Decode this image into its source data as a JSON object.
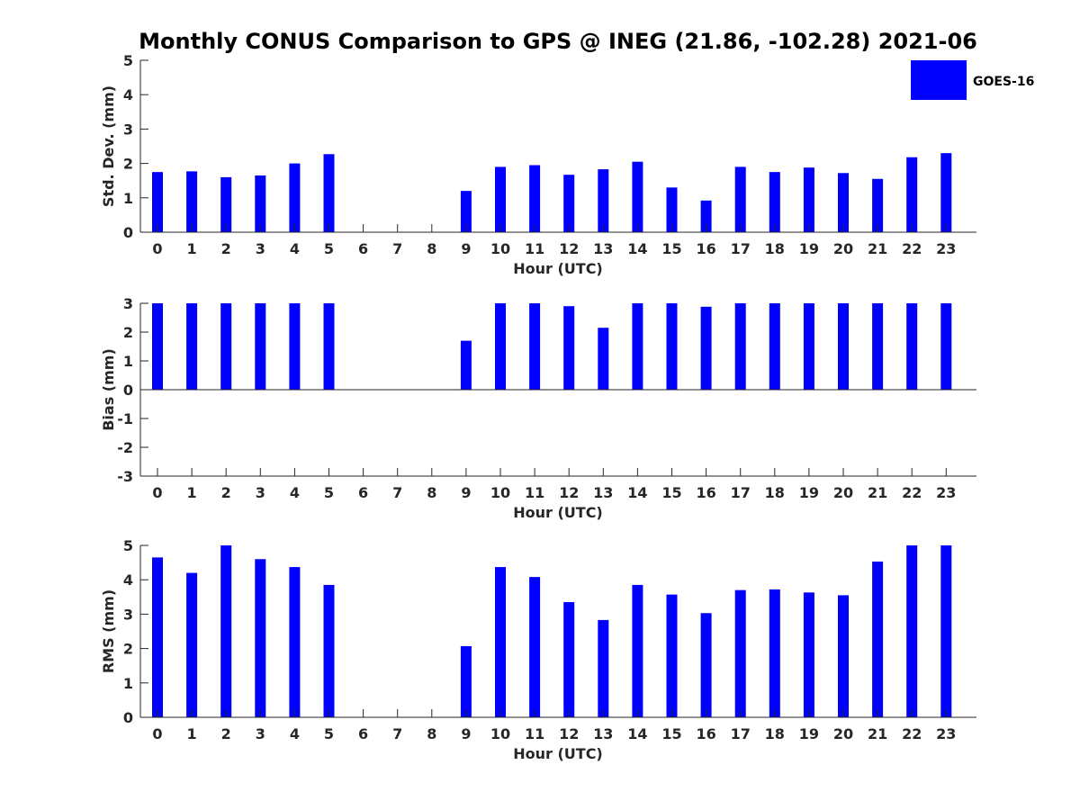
{
  "title": "Monthly CONUS Comparison to GPS @ INEG (21.86, -102.28) 2021-06",
  "legend": {
    "label": "GOES-16",
    "color": "#0000ff",
    "placement": "top-right"
  },
  "chart_data": [
    {
      "type": "bar",
      "xlabel": "Hour (UTC)",
      "ylabel": "Std. Dev. (mm)",
      "ylim": [
        0,
        5
      ],
      "yticks": [
        0,
        1,
        2,
        3,
        4,
        5
      ],
      "categories": [
        "0",
        "1",
        "2",
        "3",
        "4",
        "5",
        "6",
        "7",
        "8",
        "9",
        "10",
        "11",
        "12",
        "13",
        "14",
        "15",
        "16",
        "17",
        "18",
        "19",
        "20",
        "21",
        "22",
        "23"
      ],
      "series": [
        {
          "name": "GOES-16",
          "values": [
            1.75,
            1.77,
            1.6,
            1.65,
            2.0,
            2.27,
            null,
            null,
            null,
            1.2,
            1.9,
            1.95,
            1.67,
            1.83,
            2.05,
            1.3,
            0.92,
            1.9,
            1.75,
            1.88,
            1.72,
            1.55,
            2.18,
            2.3
          ]
        }
      ]
    },
    {
      "type": "bar",
      "xlabel": "Hour (UTC)",
      "ylabel": "Bias (mm)",
      "ylim": [
        -3,
        3
      ],
      "yticks": [
        -3,
        -2,
        -1,
        0,
        1,
        2,
        3
      ],
      "categories": [
        "0",
        "1",
        "2",
        "3",
        "4",
        "5",
        "6",
        "7",
        "8",
        "9",
        "10",
        "11",
        "12",
        "13",
        "14",
        "15",
        "16",
        "17",
        "18",
        "19",
        "20",
        "21",
        "22",
        "23"
      ],
      "series": [
        {
          "name": "GOES-16",
          "values": [
            3,
            3,
            3,
            3,
            3,
            3,
            null,
            null,
            null,
            1.7,
            3,
            3,
            2.9,
            2.15,
            3,
            3,
            2.88,
            3,
            3,
            3,
            3,
            3,
            3,
            3
          ]
        }
      ]
    },
    {
      "type": "bar",
      "xlabel": "Hour (UTC)",
      "ylabel": "RMS (mm)",
      "ylim": [
        0,
        5
      ],
      "yticks": [
        0,
        1,
        2,
        3,
        4,
        5
      ],
      "categories": [
        "0",
        "1",
        "2",
        "3",
        "4",
        "5",
        "6",
        "7",
        "8",
        "9",
        "10",
        "11",
        "12",
        "13",
        "14",
        "15",
        "16",
        "17",
        "18",
        "19",
        "20",
        "21",
        "22",
        "23"
      ],
      "series": [
        {
          "name": "GOES-16",
          "values": [
            4.65,
            4.2,
            5,
            4.6,
            4.37,
            3.85,
            null,
            null,
            null,
            2.07,
            4.37,
            4.08,
            3.35,
            2.83,
            3.85,
            3.57,
            3.03,
            3.7,
            3.72,
            3.63,
            3.55,
            4.53,
            5,
            5
          ]
        }
      ]
    }
  ]
}
